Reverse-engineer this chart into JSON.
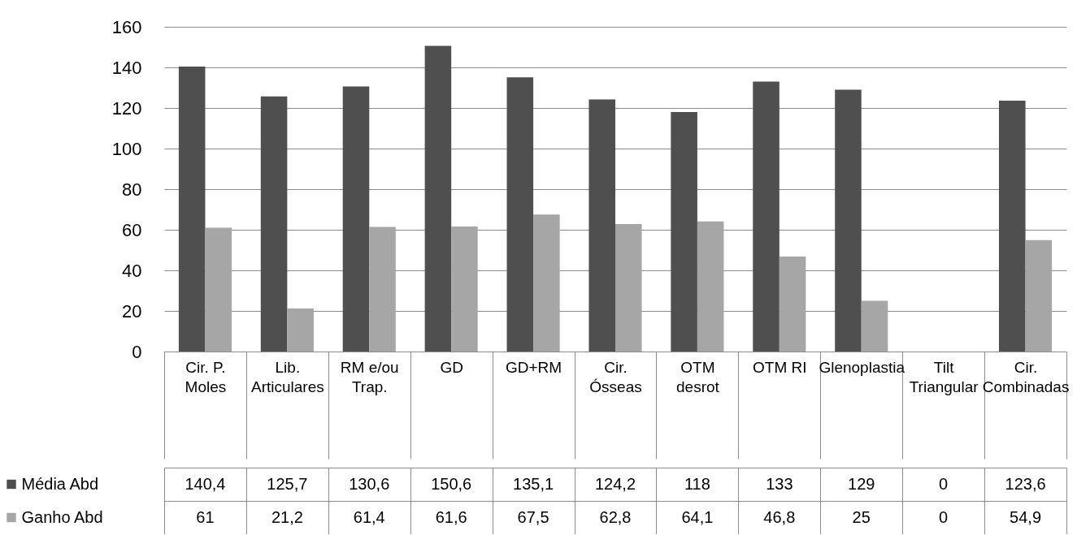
{
  "chart_data": {
    "type": "bar",
    "categories": [
      "Cir. P. Moles",
      "Lib. Articulares",
      "RM e/ou Trap.",
      "GD",
      "GD+RM",
      "Cir. Ósseas",
      "OTM desrot",
      "OTM RI",
      "Glenoplastia",
      "Tilt Triangular",
      "Cir. Combinadas"
    ],
    "series": [
      {
        "name": "Média Abd",
        "color": "#4f4f4f",
        "values": [
          140.4,
          125.7,
          130.6,
          150.6,
          135.1,
          124.2,
          118,
          133,
          129,
          0,
          123.6
        ],
        "value_labels": [
          "140,4",
          "125,7",
          "130,6",
          "150,6",
          "135,1",
          "124,2",
          "118",
          "133",
          "129",
          "0",
          "123,6"
        ]
      },
      {
        "name": "Ganho Abd",
        "color": "#a6a6a6",
        "values": [
          61,
          21.2,
          61.4,
          61.6,
          67.5,
          62.8,
          64.1,
          46.8,
          25,
          0,
          54.9
        ],
        "value_labels": [
          "61",
          "21,2",
          "61,4",
          "61,6",
          "67,5",
          "62,8",
          "64,1",
          "46,8",
          "25",
          "0",
          "54,9"
        ]
      }
    ],
    "ylim": [
      0,
      160
    ],
    "yticks": [
      0,
      20,
      40,
      60,
      80,
      100,
      120,
      140,
      160
    ],
    "grid": "y",
    "legend": "bottom left"
  }
}
